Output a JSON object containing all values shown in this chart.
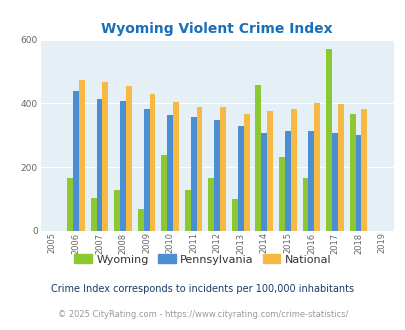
{
  "title": "Wyoming Violent Crime Index",
  "years": [
    2005,
    2006,
    2007,
    2008,
    2009,
    2010,
    2011,
    2012,
    2013,
    2014,
    2015,
    2016,
    2017,
    2018,
    2019
  ],
  "wyoming": [
    null,
    165,
    105,
    130,
    70,
    237,
    130,
    165,
    100,
    458,
    232,
    167,
    570,
    367,
    null
  ],
  "pennsylvania": [
    null,
    438,
    413,
    408,
    383,
    365,
    357,
    348,
    328,
    308,
    313,
    313,
    308,
    300,
    null
  ],
  "national": [
    null,
    473,
    466,
    456,
    430,
    405,
    390,
    390,
    367,
    375,
    383,
    400,
    397,
    383,
    null
  ],
  "wyoming_color": "#8cc832",
  "pennsylvania_color": "#4a8fd4",
  "national_color": "#f5b944",
  "bg_color": "#e4f0f5",
  "ylim": [
    0,
    600
  ],
  "yticks": [
    0,
    200,
    400,
    600
  ],
  "bar_width": 0.25,
  "legend_labels": [
    "Wyoming",
    "Pennsylvania",
    "National"
  ],
  "footnote1": "Crime Index corresponds to incidents per 100,000 inhabitants",
  "footnote2": "© 2025 CityRating.com - https://www.cityrating.com/crime-statistics/",
  "title_color": "#1a6fba",
  "footnote1_color": "#1a3a6a",
  "footnote2_color": "#999999"
}
